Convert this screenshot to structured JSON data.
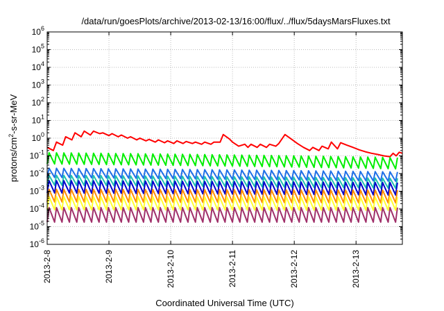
{
  "chart_data": {
    "type": "line",
    "title": "/data/run/goesPlots/archive/2013-02-13/16:00/flux/../flux/5daysMarsFluxes.txt",
    "xlabel": "Coordinated Universal Time (UTC)",
    "ylabel_parts": {
      "base": "protons/cm",
      "sup": "2",
      "rest": "-s-sr-MeV"
    },
    "yscale": "log",
    "ylim_exp": [
      -6,
      6
    ],
    "y_ticks": [
      {
        "base": "10",
        "exp": "6"
      },
      {
        "base": "10",
        "exp": "5"
      },
      {
        "base": "10",
        "exp": "4"
      },
      {
        "base": "10",
        "exp": "3"
      },
      {
        "base": "10",
        "exp": "2"
      },
      {
        "base": "10",
        "exp": "1"
      },
      {
        "base": "10",
        "exp": "0"
      },
      {
        "base": "10",
        "exp": "-1"
      },
      {
        "base": "10",
        "exp": "-2"
      },
      {
        "base": "10",
        "exp": "-3"
      },
      {
        "base": "10",
        "exp": "-4"
      },
      {
        "base": "10",
        "exp": "-5"
      },
      {
        "base": "10",
        "exp": "-6"
      }
    ],
    "x_ticks": [
      "2013-2-8",
      "2013-2-9",
      "2013-2-10",
      "2013-2-11",
      "2013-2-12",
      "2013-2-13"
    ],
    "x_tick_days": [
      0,
      1,
      2,
      3,
      4,
      5
    ],
    "x_range_days": [
      0,
      5.75
    ],
    "grid": true,
    "series": [
      {
        "color": "#ff0000",
        "sawtooth_period_days": 0.0,
        "points": [
          [
            0,
            0.3
          ],
          [
            0.1,
            0.2
          ],
          [
            0.15,
            0.6
          ],
          [
            0.25,
            0.4
          ],
          [
            0.3,
            1.2
          ],
          [
            0.4,
            0.8
          ],
          [
            0.45,
            2
          ],
          [
            0.55,
            1.2
          ],
          [
            0.6,
            2.5
          ],
          [
            0.7,
            1.5
          ],
          [
            0.75,
            2.5
          ],
          [
            0.85,
            1.8
          ],
          [
            0.9,
            2
          ],
          [
            1.0,
            1.4
          ],
          [
            1.05,
            1.8
          ],
          [
            1.15,
            1.2
          ],
          [
            1.2,
            1.5
          ],
          [
            1.3,
            1.0
          ],
          [
            1.35,
            1.2
          ],
          [
            1.45,
            0.8
          ],
          [
            1.5,
            1.0
          ],
          [
            1.6,
            0.7
          ],
          [
            1.65,
            0.85
          ],
          [
            1.75,
            0.6
          ],
          [
            1.8,
            0.8
          ],
          [
            1.9,
            0.55
          ],
          [
            1.95,
            0.7
          ],
          [
            2.05,
            0.5
          ],
          [
            2.1,
            0.7
          ],
          [
            2.2,
            0.5
          ],
          [
            2.25,
            0.65
          ],
          [
            2.35,
            0.5
          ],
          [
            2.4,
            0.6
          ],
          [
            2.5,
            0.45
          ],
          [
            2.55,
            0.6
          ],
          [
            2.65,
            0.45
          ],
          [
            2.7,
            0.6
          ],
          [
            2.8,
            0.6
          ],
          [
            2.85,
            1.6
          ],
          [
            2.95,
            0.9
          ],
          [
            3.0,
            0.6
          ],
          [
            3.1,
            0.35
          ],
          [
            3.2,
            0.45
          ],
          [
            3.25,
            0.3
          ],
          [
            3.3,
            0.45
          ],
          [
            3.4,
            0.3
          ],
          [
            3.45,
            0.45
          ],
          [
            3.55,
            0.3
          ],
          [
            3.6,
            0.45
          ],
          [
            3.7,
            0.35
          ],
          [
            3.75,
            0.5
          ],
          [
            3.85,
            1.6
          ],
          [
            3.95,
            0.9
          ],
          [
            4.05,
            0.5
          ],
          [
            4.15,
            0.3
          ],
          [
            4.25,
            0.2
          ],
          [
            4.3,
            0.3
          ],
          [
            4.4,
            0.2
          ],
          [
            4.45,
            0.35
          ],
          [
            4.55,
            0.25
          ],
          [
            4.6,
            0.6
          ],
          [
            4.7,
            0.25
          ],
          [
            4.75,
            0.55
          ],
          [
            4.85,
            0.4
          ],
          [
            4.95,
            0.3
          ],
          [
            5.05,
            0.22
          ],
          [
            5.15,
            0.17
          ],
          [
            5.25,
            0.14
          ],
          [
            5.35,
            0.12
          ],
          [
            5.45,
            0.1
          ],
          [
            5.55,
            0.09
          ],
          [
            5.6,
            0.14
          ],
          [
            5.65,
            0.1
          ],
          [
            5.7,
            0.16
          ],
          [
            5.75,
            0.14
          ]
        ]
      },
      {
        "color": "#00ee00",
        "sawtooth_period_days": 0.12,
        "low": 0.035,
        "high": 0.15,
        "trend_end_factor": 0.2
      },
      {
        "color": "#1e6fe8",
        "sawtooth_period_days": 0.12,
        "low": 0.006,
        "high": 0.02,
        "trend_end_factor": 0.35
      },
      {
        "color": "#20c0b0",
        "sawtooth_period_days": 0.12,
        "low": 0.0022,
        "high": 0.008,
        "trend_end_factor": 0.45
      },
      {
        "color": "#0000cc",
        "sawtooth_period_days": 0.12,
        "low": 0.0008,
        "high": 0.004,
        "trend_end_factor": 0.6
      },
      {
        "color": "#ff8c00",
        "sawtooth_period_days": 0.12,
        "low": 0.00025,
        "high": 0.0013,
        "trend_end_factor": 0.8
      },
      {
        "color": "#ffff33",
        "sawtooth_period_days": 0.12,
        "low": 9e-05,
        "high": 0.0005,
        "trend_end_factor": 0.9
      },
      {
        "color": "#a0306a",
        "sawtooth_period_days": 0.12,
        "low": 1.8e-05,
        "high": 0.00012,
        "trend_end_factor": 1.0
      }
    ]
  }
}
